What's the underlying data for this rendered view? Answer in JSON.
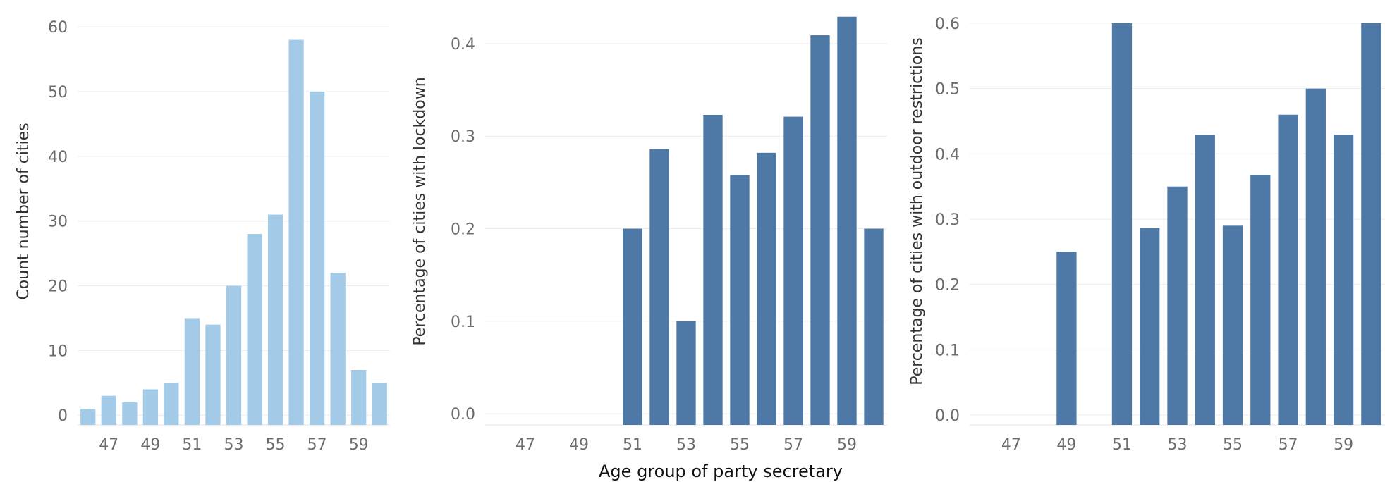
{
  "chart_data": [
    {
      "type": "bar",
      "categories": [
        "46",
        "47",
        "48",
        "49",
        "50",
        "51",
        "52",
        "53",
        "54",
        "55",
        "56",
        "57",
        "58",
        "59",
        "60"
      ],
      "values": [
        1,
        3,
        2,
        4,
        5,
        15,
        14,
        20,
        28,
        31,
        58,
        50,
        22,
        7,
        5
      ],
      "color": "#a3cbe8",
      "ylabel": "Count number of cities",
      "ylim": [
        -1.5,
        61
      ],
      "yticks": [
        0,
        10,
        20,
        30,
        40,
        50,
        60
      ],
      "xticks": [
        "47",
        "49",
        "51",
        "53",
        "55",
        "57",
        "59"
      ],
      "grid": true
    },
    {
      "type": "bar",
      "categories": [
        "46",
        "47",
        "48",
        "49",
        "50",
        "51",
        "52",
        "53",
        "54",
        "55",
        "56",
        "57",
        "58",
        "59",
        "60"
      ],
      "values": [
        0,
        0,
        0,
        0,
        0,
        0.2,
        0.286,
        0.1,
        0.323,
        0.258,
        0.282,
        0.321,
        0.409,
        0.429,
        0.2
      ],
      "color": "#4e79a7",
      "ylabel": "Percentage of cities with lockdown",
      "xlabel": "Age group of party secretary",
      "ylim": [
        -0.012,
        0.425
      ],
      "yticks": [
        "0.0",
        "0.1",
        "0.2",
        "0.3",
        "0.4"
      ],
      "xticks": [
        "47",
        "49",
        "51",
        "53",
        "55",
        "57",
        "59"
      ],
      "grid": true
    },
    {
      "type": "bar",
      "categories": [
        "46",
        "47",
        "48",
        "49",
        "50",
        "51",
        "52",
        "53",
        "54",
        "55",
        "56",
        "57",
        "58",
        "59",
        "60"
      ],
      "values": [
        0,
        0,
        0,
        0.25,
        0,
        0.6,
        0.286,
        0.35,
        0.429,
        0.29,
        0.368,
        0.46,
        0.5,
        0.429,
        0.6
      ],
      "color": "#4e79a7",
      "ylabel": "Percentage of cities with outdoor restrictions",
      "ylim": [
        -0.015,
        0.6
      ],
      "yticks": [
        "0.0",
        "0.1",
        "0.2",
        "0.3",
        "0.4",
        "0.5",
        "0.6"
      ],
      "xticks": [
        "47",
        "49",
        "51",
        "53",
        "55",
        "57",
        "59"
      ],
      "grid": true
    }
  ]
}
